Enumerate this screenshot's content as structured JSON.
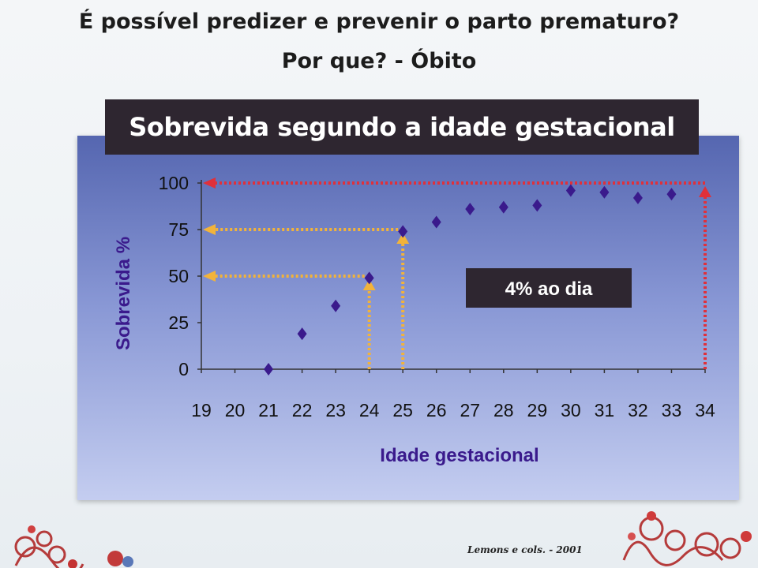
{
  "slide": {
    "title_line1": "É possível predizer e prevenir o parto prematuro?",
    "title_line2": "Por que? - Óbito",
    "citation": "Lemons e cols. - 2001"
  },
  "chart_data": {
    "type": "scatter",
    "title": "Sobrevida segundo a idade gestacional",
    "xlabel": "Idade gestacional",
    "ylabel": "Sobrevida %",
    "xlim": [
      19,
      34
    ],
    "ylim": [
      0,
      100
    ],
    "xticks": [
      "19",
      "20",
      "21",
      "22",
      "23",
      "24",
      "25",
      "26",
      "27",
      "28",
      "29",
      "30",
      "31",
      "32",
      "33",
      "34"
    ],
    "yticks": [
      "0",
      "25",
      "50",
      "75",
      "100"
    ],
    "series": [
      {
        "x": [
          21,
          22,
          23,
          24,
          25,
          26,
          27,
          28,
          29,
          30,
          31,
          32,
          33
        ],
        "y": [
          0,
          19,
          34,
          49,
          74,
          79,
          86,
          87,
          88,
          96,
          95,
          92,
          94
        ],
        "color": "#3a1a8c"
      }
    ],
    "annotation": "4% ao dia",
    "guide_lines": [
      {
        "x": 24,
        "y": 50,
        "color": "#f2b33a"
      },
      {
        "x": 25,
        "y": 75,
        "color": "#f2b33a"
      },
      {
        "x": 34,
        "y": 100,
        "color": "#e0303a"
      }
    ],
    "colors": {
      "marker": "#3a1a8c",
      "axis_text": "#111111",
      "ylabel": "#3a1a8c",
      "xlabel": "#3a1a8c",
      "guide_orange": "#f2b33a",
      "guide_red": "#e0303a",
      "annotation_bg": "#2e2630"
    }
  }
}
